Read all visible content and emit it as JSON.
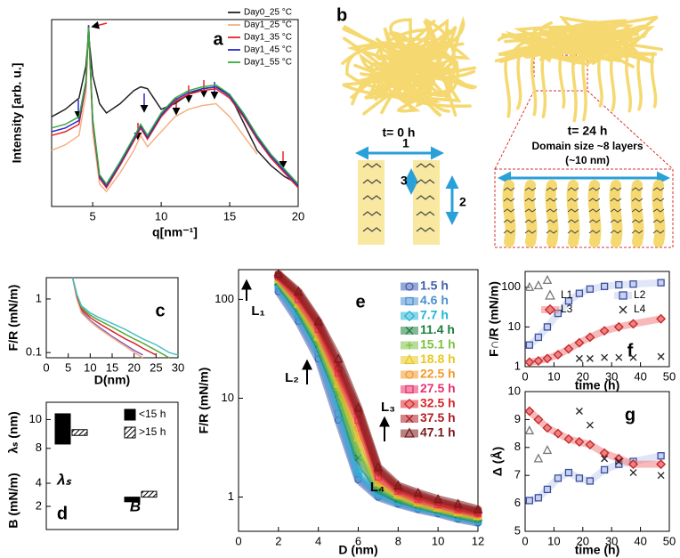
{
  "chart_data": [
    {
      "type": "line",
      "label": "a",
      "xlabel": "q[nm⁻¹]",
      "ylabel": "Intensity [arb. u.]",
      "x": [
        2,
        3,
        4,
        4.5,
        4.7,
        5,
        5.5,
        6,
        7,
        8,
        8.5,
        9,
        10,
        11,
        12,
        13,
        14,
        15,
        16,
        17,
        18,
        19,
        20
      ],
      "xlim": [
        2,
        20
      ],
      "xticks": [
        5,
        10,
        15,
        20
      ],
      "ylim": [
        0,
        100
      ],
      "series": [
        {
          "name": "Day0_25 °C",
          "color": "#222222",
          "values": [
            48,
            52,
            58,
            75,
            92,
            70,
            55,
            50,
            55,
            62,
            64,
            63,
            52,
            55,
            60,
            63,
            64,
            60,
            45,
            30,
            22,
            16,
            12
          ]
        },
        {
          "name": "Day1_25 °C",
          "color": "#f4b183",
          "values": [
            30,
            33,
            38,
            60,
            95,
            40,
            12,
            8,
            18,
            30,
            38,
            32,
            40,
            48,
            52,
            54,
            55,
            48,
            38,
            28,
            null,
            null,
            null
          ]
        },
        {
          "name": "Day1_35 °C",
          "color": "#e8242a",
          "values": [
            38,
            40,
            44,
            65,
            97,
            45,
            15,
            10,
            22,
            35,
            42,
            36,
            48,
            56,
            60,
            62,
            63,
            58,
            48,
            36,
            26,
            18,
            10
          ]
        },
        {
          "name": "Day1_45 °C",
          "color": "#2a2ad0",
          "values": [
            40,
            42,
            46,
            66,
            97,
            46,
            16,
            11,
            23,
            36,
            43,
            37,
            49,
            57,
            61,
            63,
            64,
            59,
            49,
            37,
            27,
            19,
            11
          ]
        },
        {
          "name": "Day1_55 °C",
          "color": "#3aa83a",
          "values": [
            42,
            44,
            48,
            67,
            96,
            47,
            17,
            12,
            24,
            37,
            44,
            38,
            50,
            58,
            62,
            64,
            65,
            60,
            50,
            38,
            28,
            20,
            12
          ]
        }
      ]
    },
    {
      "type": "line",
      "label": "c",
      "xlabel": "D(nm)",
      "ylabel": "F/R (mN/m)",
      "log_y": true,
      "x": [
        6,
        7,
        8,
        10,
        12,
        15,
        18,
        20,
        22,
        25,
        28,
        30
      ],
      "xlim": [
        0,
        30
      ],
      "xticks": [
        0,
        5,
        10,
        15,
        20,
        25,
        30
      ],
      "ylim": [
        0.08,
        2.5
      ],
      "yticks": [
        0.1,
        1
      ],
      "series": [
        {
          "color": "#8a5cc2",
          "values": [
            2.5,
            1.0,
            0.6,
            0.4,
            0.3,
            0.2,
            0.14,
            0.11,
            0.09,
            null,
            null,
            null
          ]
        },
        {
          "color": "#f4b183",
          "values": [
            2.5,
            1.0,
            0.55,
            0.38,
            0.28,
            0.19,
            0.13,
            0.1,
            0.08,
            null,
            null,
            null
          ]
        },
        {
          "color": "#d8262a",
          "values": [
            2.5,
            1.1,
            0.65,
            0.45,
            0.35,
            0.25,
            0.18,
            0.15,
            0.12,
            0.09,
            null,
            null
          ]
        },
        {
          "color": "#5aa83a",
          "values": [
            2.5,
            1.2,
            0.7,
            0.5,
            0.4,
            0.3,
            0.22,
            0.18,
            0.15,
            0.11,
            0.08,
            null
          ]
        },
        {
          "color": "#4cc0c8",
          "values": [
            2.5,
            1.2,
            0.75,
            0.55,
            0.45,
            0.35,
            0.27,
            0.22,
            0.18,
            0.14,
            0.1,
            0.09
          ]
        }
      ]
    },
    {
      "type": "box",
      "ylabel": "λₛ (nm)",
      "ylim": [
        7,
        11.2
      ],
      "yticks": [
        8,
        10
      ],
      "categories": [
        null
      ],
      "annotations": [
        "λₛ"
      ],
      "series": [
        {
          "name": "<15 h",
          "color": "#000000",
          "low": [
            8.3
          ],
          "high": [
            10.4
          ]
        },
        {
          "name": ">15 h",
          "color": "#000000",
          "pattern": "hatch",
          "low": [
            8.9
          ],
          "high": [
            9.3
          ]
        }
      ]
    },
    {
      "type": "box",
      "label": "d",
      "ylabel": "B (mN/m)",
      "ylim": [
        0,
        5
      ],
      "yticks": [
        2,
        4
      ],
      "categories": [
        null
      ],
      "annotations": [
        "B"
      ],
      "series": [
        {
          "color": "#000000",
          "low": [
            2.4
          ],
          "high": [
            2.8
          ]
        },
        {
          "color": "#000000",
          "pattern": "hatch",
          "low": [
            2.8
          ],
          "high": [
            3.3
          ]
        }
      ]
    },
    {
      "type": "scatter",
      "label": "e",
      "xlabel": "D (nm)",
      "ylabel": "F/R (mN/m)",
      "log_y": true,
      "legend_colored": true,
      "band_width": 9,
      "x": [
        2,
        3,
        4,
        5,
        6,
        7,
        8,
        9,
        10,
        11,
        12
      ],
      "xlim": [
        0,
        12
      ],
      "xticks": [
        0,
        2,
        4,
        6,
        8,
        10,
        12
      ],
      "ylim": [
        0.45,
        200
      ],
      "yticks": [
        1,
        10,
        100
      ],
      "annotations": [
        "L₁",
        "L₂",
        "L₃",
        "L₄"
      ],
      "series": [
        {
          "name": "1.5 h",
          "color": "#3f5fb0",
          "marker": "circle",
          "band": true,
          "values": [
            120,
            60,
            25,
            6,
            1.5,
            1.0,
            0.85,
            0.75,
            0.68,
            0.6,
            0.55
          ]
        },
        {
          "name": "4.6 h",
          "color": "#4a90d0",
          "marker": "square",
          "band": true,
          "values": [
            130,
            65,
            28,
            7,
            1.6,
            1.05,
            0.88,
            0.77,
            0.7,
            0.62,
            0.57
          ]
        },
        {
          "name": "7.7 h",
          "color": "#22b5d5",
          "marker": "diamond",
          "band": true,
          "values": [
            140,
            72,
            32,
            9,
            1.8,
            1.1,
            0.9,
            0.8,
            0.72,
            0.64,
            0.58
          ]
        },
        {
          "name": "11.4 h",
          "color": "#1e7f3e",
          "marker": "x",
          "band": true,
          "values": [
            150,
            80,
            35,
            11,
            2.5,
            1.2,
            0.95,
            0.83,
            0.74,
            0.66,
            0.6
          ]
        },
        {
          "name": "15.1 h",
          "color": "#7cc242",
          "marker": "plus",
          "band": true,
          "values": [
            155,
            85,
            38,
            12,
            3,
            1.3,
            1.0,
            0.85,
            0.76,
            0.68,
            0.62
          ]
        },
        {
          "name": "18.8 h",
          "color": "#e8c820",
          "marker": "triangle",
          "band": true,
          "values": [
            160,
            90,
            42,
            14,
            4,
            1.4,
            1.05,
            0.88,
            0.78,
            0.7,
            0.64
          ]
        },
        {
          "name": "22.5 h",
          "color": "#f39a2a",
          "marker": "circle",
          "band": true,
          "values": [
            165,
            95,
            45,
            16,
            5,
            1.5,
            1.1,
            0.9,
            0.8,
            0.72,
            0.66
          ]
        },
        {
          "name": "27.5 h",
          "color": "#e8326e",
          "marker": "square",
          "band": true,
          "values": [
            170,
            100,
            50,
            18,
            6,
            1.6,
            1.15,
            0.95,
            0.84,
            0.75,
            0.68
          ]
        },
        {
          "name": "32.5 h",
          "color": "#d8262a",
          "marker": "diamond",
          "band": true,
          "values": [
            175,
            110,
            55,
            20,
            7,
            1.8,
            1.2,
            1.0,
            0.88,
            0.78,
            0.7
          ]
        },
        {
          "name": "37.5 h",
          "color": "#b01e24",
          "marker": "x",
          "band": true,
          "values": [
            178,
            115,
            58,
            22,
            7.5,
            1.9,
            1.25,
            1.05,
            0.9,
            0.8,
            0.72
          ]
        },
        {
          "name": "47.1 h",
          "color": "#7a1a1a",
          "marker": "triangle",
          "band": true,
          "values": [
            180,
            120,
            60,
            25,
            8,
            2,
            1.3,
            1.1,
            0.95,
            0.85,
            0.75
          ]
        }
      ]
    },
    {
      "type": "scatter",
      "label": "f",
      "xlabel": "time (h)",
      "ylabel": "F∩/R (mN/m)",
      "log_y": true,
      "band_width": 8,
      "x": [
        1.5,
        4.6,
        7.7,
        11.4,
        15.1,
        18.8,
        22.5,
        27.5,
        32.5,
        37.5,
        47.1
      ],
      "xlim": [
        0,
        50
      ],
      "xticks": [
        0,
        10,
        20,
        30,
        40,
        50
      ],
      "ylim": [
        1,
        250
      ],
      "yticks": [
        1,
        10,
        100
      ],
      "series": [
        {
          "name": "L1",
          "color": "#777777",
          "marker": "triangle",
          "values": [
            100,
            110,
            150,
            null,
            null,
            null,
            null,
            null,
            null,
            null,
            null
          ]
        },
        {
          "name": "L2",
          "color": "#3a4fa0",
          "fill": "#c8d2ee",
          "marker": "square",
          "band": true,
          "values": [
            3.5,
            5.5,
            10,
            22,
            45,
            70,
            90,
            105,
            115,
            120,
            130
          ]
        },
        {
          "name": "L3",
          "color": "#c0262a",
          "fill": "#f08080",
          "marker": "diamond",
          "band": true,
          "values": [
            1.3,
            1.4,
            1.6,
            2,
            2.8,
            4,
            5.5,
            8,
            10,
            12,
            16
          ]
        },
        {
          "name": "L4",
          "color": "#222222",
          "marker": "x",
          "values": [
            null,
            null,
            null,
            null,
            null,
            1.6,
            1.6,
            1.7,
            1.7,
            1.7,
            1.8
          ]
        }
      ]
    },
    {
      "type": "scatter",
      "label": "g",
      "xlabel": "time (h)",
      "ylabel": "Δ (Å)",
      "band_width": 8,
      "x": [
        1.5,
        4.6,
        7.7,
        11.4,
        15.1,
        18.8,
        22.5,
        27.5,
        32.5,
        37.5,
        47.1
      ],
      "xlim": [
        0,
        50
      ],
      "xticks": [
        0,
        10,
        20,
        30,
        40,
        50
      ],
      "ylim": [
        5,
        10
      ],
      "yticks": [
        5,
        6,
        7,
        8,
        9,
        10
      ],
      "series": [
        {
          "color": "#777777",
          "marker": "triangle",
          "values": [
            8.6,
            7.6,
            7.9,
            null,
            null,
            null,
            null,
            null,
            null,
            null,
            null
          ]
        },
        {
          "color": "#3a4fa0",
          "fill": "#c8d2ee",
          "marker": "square",
          "band": true,
          "values": [
            6.1,
            6.2,
            6.5,
            6.9,
            7.1,
            6.9,
            6.8,
            7.2,
            7.4,
            7.5,
            7.7
          ]
        },
        {
          "color": "#c0262a",
          "fill": "#f08080",
          "marker": "diamond",
          "band": true,
          "values": [
            9.3,
            9.0,
            8.7,
            8.5,
            8.3,
            8.2,
            8.1,
            7.8,
            7.6,
            7.4,
            7.4
          ]
        },
        {
          "color": "#222222",
          "marker": "x",
          "values": [
            null,
            null,
            null,
            null,
            null,
            9.3,
            8.8,
            7.6,
            7.5,
            7.1,
            7.0
          ]
        }
      ]
    }
  ],
  "diagram_b": {
    "label": "b",
    "t0": "t= 0 h",
    "t24": "t= 24 h",
    "domain": "Domain size ~8 layers",
    "domain_nm": "(~10 nm)",
    "arrows": [
      "1",
      "2",
      "3"
    ]
  }
}
